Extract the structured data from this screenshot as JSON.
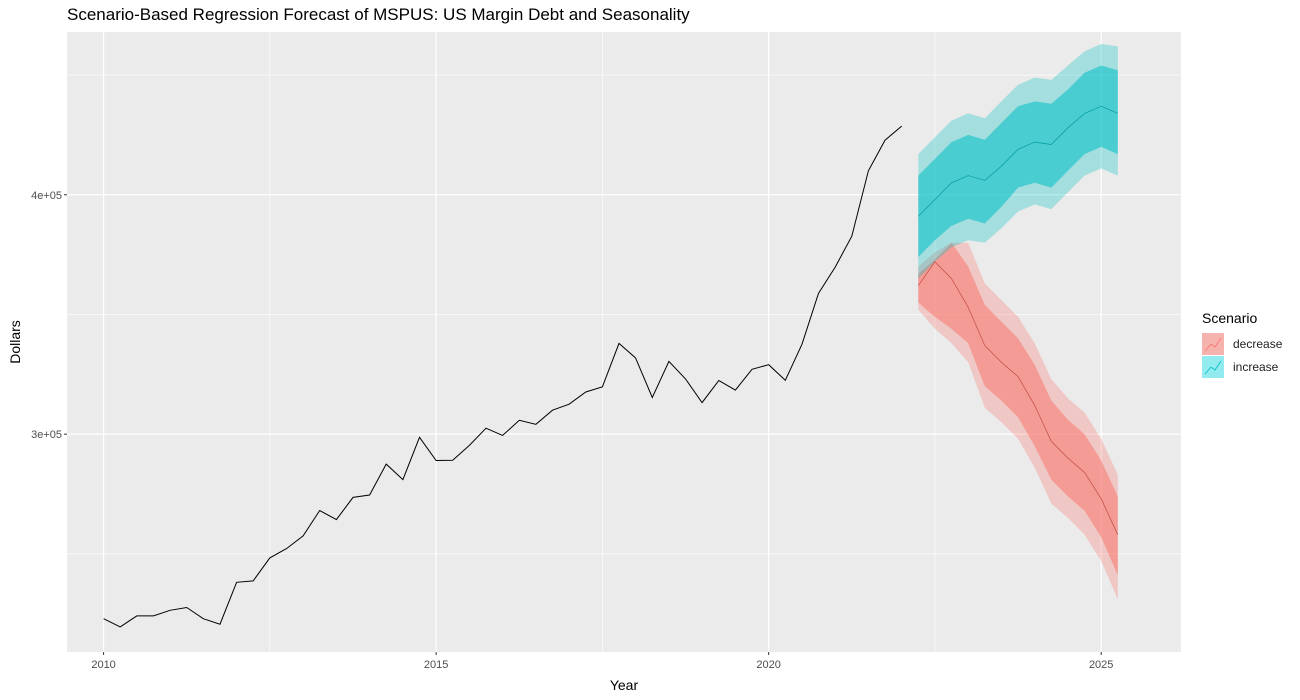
{
  "chart_data": {
    "type": "line",
    "title": "Scenario-Based Regression Forecast of MSPUS: US Margin Debt and Seasonality",
    "xlabel": "Year",
    "ylabel": "Dollars",
    "xlim": [
      2009.45,
      2026.2
    ],
    "ylim": [
      209000,
      468000
    ],
    "x_ticks": [
      2010,
      2015,
      2020,
      2025
    ],
    "x_tick_labels": [
      "2010",
      "2015",
      "2020",
      "2025"
    ],
    "y_ticks": [
      300000,
      400000
    ],
    "y_tick_labels": [
      "3e+05",
      "4e+05"
    ],
    "grid": true,
    "legend_title": "Scenario",
    "legend_position": "right",
    "history": {
      "x": [
        2010.0,
        2010.25,
        2010.5,
        2010.75,
        2011.0,
        2011.25,
        2011.5,
        2011.75,
        2012.0,
        2012.25,
        2012.5,
        2012.75,
        2013.0,
        2013.25,
        2013.5,
        2013.75,
        2014.0,
        2014.25,
        2014.5,
        2014.75,
        2015.0,
        2015.25,
        2015.5,
        2015.75,
        2016.0,
        2016.25,
        2016.5,
        2016.75,
        2017.0,
        2017.25,
        2017.5,
        2017.75,
        2018.0,
        2018.25,
        2018.5,
        2018.75,
        2019.0,
        2019.25,
        2019.5,
        2019.75,
        2020.0,
        2020.25,
        2020.5,
        2020.75,
        2021.0,
        2021.25,
        2021.5,
        2021.75,
        2022.0
      ],
      "y": [
        222900,
        219500,
        224100,
        224100,
        226400,
        227600,
        222900,
        220600,
        238100,
        238700,
        248300,
        252200,
        257500,
        268100,
        264300,
        273600,
        274600,
        287500,
        281000,
        298700,
        289000,
        289100,
        295300,
        302500,
        299500,
        305800,
        304100,
        310000,
        312500,
        317600,
        319800,
        337900,
        331800,
        315300,
        330400,
        323100,
        313200,
        322400,
        318400,
        327100,
        329000,
        322500,
        337500,
        358800,
        369800,
        382700,
        410000,
        422800,
        428700
      ]
    },
    "series": [
      {
        "name": "decrease",
        "color": "#F8766D",
        "x": [
          2022.25,
          2022.5,
          2022.75,
          2023.0,
          2023.25,
          2023.5,
          2023.75,
          2024.0,
          2024.25,
          2024.5,
          2024.75,
          2025.0,
          2025.25
        ],
        "mean": [
          362000,
          372000,
          365000,
          353000,
          337000,
          330000,
          324000,
          312000,
          297000,
          290000,
          284000,
          273000,
          258000
        ],
        "lo80": [
          355000,
          349000,
          344000,
          338000,
          320000,
          314000,
          307000,
          295000,
          281000,
          274000,
          268000,
          257000,
          241000
        ],
        "hi80": [
          367000,
          373000,
          380000,
          370000,
          354000,
          347000,
          340000,
          329000,
          314000,
          306000,
          300000,
          289000,
          274000
        ],
        "lo95": [
          352000,
          344000,
          338000,
          330000,
          311000,
          305000,
          298000,
          286000,
          271000,
          265000,
          258000,
          247000,
          231000
        ],
        "hi95": [
          370000,
          376000,
          380000,
          380000,
          363000,
          356000,
          349000,
          338000,
          323000,
          315000,
          309000,
          298000,
          283000
        ]
      },
      {
        "name": "increase",
        "color": "#00BFC4",
        "x": [
          2022.25,
          2022.5,
          2022.75,
          2023.0,
          2023.25,
          2023.5,
          2023.75,
          2024.0,
          2024.25,
          2024.5,
          2024.75,
          2025.0,
          2025.25
        ],
        "mean": [
          391000,
          398000,
          405000,
          408000,
          406000,
          412000,
          419000,
          422000,
          421000,
          428000,
          434000,
          437000,
          434000
        ],
        "lo80": [
          374000,
          381000,
          387000,
          390000,
          388000,
          395000,
          403000,
          405000,
          403000,
          410000,
          417000,
          420000,
          417000
        ],
        "hi80": [
          408000,
          415000,
          422000,
          425000,
          423000,
          430000,
          437000,
          439000,
          438000,
          444000,
          451000,
          454000,
          452000
        ],
        "lo95": [
          365000,
          372000,
          378000,
          381000,
          380000,
          386000,
          393000,
          396000,
          394000,
          401000,
          408000,
          411000,
          408000
        ],
        "hi95": [
          417000,
          424000,
          431000,
          434000,
          432000,
          439000,
          446000,
          449000,
          448000,
          454000,
          460000,
          463000,
          462000
        ]
      }
    ]
  }
}
